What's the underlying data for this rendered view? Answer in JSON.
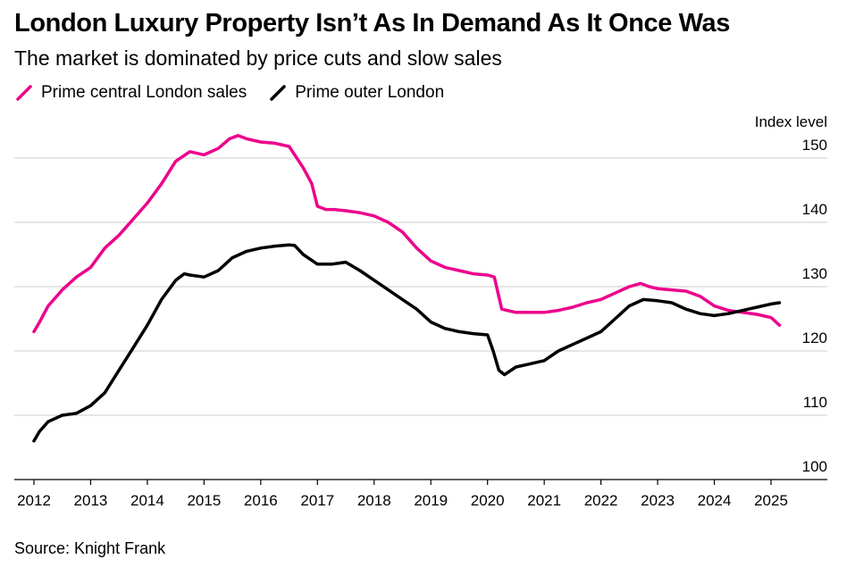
{
  "title": "London Luxury Property Isn’t As In Demand As It Once Was",
  "subtitle": "The market is dominated by price cuts and slow sales",
  "source": "Source: Knight Frank",
  "colors": {
    "pcl": "#ec008c",
    "pol": "#000000",
    "grid": "#cccccc",
    "axis": "#000000"
  },
  "chart_data": {
    "type": "line",
    "title": "London Luxury Property Isn’t As In Demand As It Once Was",
    "subtitle": "The market is dominated by price cuts and slow sales",
    "xlabel": "",
    "ylabel": "Index level",
    "xlim": [
      2012,
      2025.5
    ],
    "ylim": [
      100,
      150
    ],
    "yticks": [
      100,
      110,
      120,
      130,
      140,
      150
    ],
    "xticks": [
      2012,
      2013,
      2014,
      2015,
      2016,
      2017,
      2018,
      2019,
      2020,
      2021,
      2022,
      2023,
      2024,
      2025
    ],
    "grid": true,
    "legend": "top-left",
    "series": [
      {
        "name": "Prime central London sales",
        "color": "#ec008c",
        "x": [
          2012.0,
          2012.1,
          2012.25,
          2012.5,
          2012.75,
          2013.0,
          2013.25,
          2013.5,
          2013.75,
          2014.0,
          2014.25,
          2014.5,
          2014.75,
          2015.0,
          2015.25,
          2015.45,
          2015.6,
          2015.75,
          2016.0,
          2016.25,
          2016.5,
          2016.75,
          2016.9,
          2017.0,
          2017.15,
          2017.3,
          2017.5,
          2017.75,
          2018.0,
          2018.25,
          2018.5,
          2018.75,
          2019.0,
          2019.25,
          2019.5,
          2019.75,
          2020.0,
          2020.12,
          2020.25,
          2020.5,
          2020.75,
          2021.0,
          2021.25,
          2021.5,
          2021.75,
          2022.0,
          2022.25,
          2022.5,
          2022.7,
          2022.85,
          2023.0,
          2023.25,
          2023.5,
          2023.75,
          2024.0,
          2024.25,
          2024.5,
          2024.75,
          2025.0,
          2025.15
        ],
        "values": [
          123.0,
          124.5,
          127.0,
          129.5,
          131.5,
          133.0,
          136.0,
          138.0,
          140.5,
          143.0,
          146.0,
          149.5,
          151.0,
          150.5,
          151.5,
          153.0,
          153.5,
          153.0,
          152.5,
          152.3,
          151.8,
          148.5,
          146.0,
          142.5,
          142.0,
          142.0,
          141.8,
          141.5,
          141.0,
          140.0,
          138.5,
          136.0,
          134.0,
          133.0,
          132.5,
          132.0,
          131.8,
          131.5,
          126.5,
          126.0,
          126.0,
          126.0,
          126.3,
          126.8,
          127.5,
          128.0,
          129.0,
          130.0,
          130.5,
          130.0,
          129.7,
          129.5,
          129.3,
          128.5,
          127.0,
          126.3,
          126.0,
          125.7,
          125.2,
          124.0
        ]
      },
      {
        "name": "Prime outer London",
        "color": "#000000",
        "x": [
          2012.0,
          2012.1,
          2012.25,
          2012.5,
          2012.75,
          2013.0,
          2013.25,
          2013.5,
          2013.75,
          2014.0,
          2014.25,
          2014.5,
          2014.65,
          2014.75,
          2015.0,
          2015.25,
          2015.5,
          2015.75,
          2016.0,
          2016.25,
          2016.5,
          2016.6,
          2016.75,
          2017.0,
          2017.25,
          2017.5,
          2017.75,
          2018.0,
          2018.25,
          2018.5,
          2018.75,
          2019.0,
          2019.25,
          2019.5,
          2019.75,
          2020.0,
          2020.1,
          2020.2,
          2020.3,
          2020.5,
          2020.75,
          2021.0,
          2021.25,
          2021.5,
          2021.75,
          2022.0,
          2022.25,
          2022.5,
          2022.75,
          2023.0,
          2023.25,
          2023.5,
          2023.75,
          2024.0,
          2024.25,
          2024.5,
          2024.75,
          2025.0,
          2025.15
        ],
        "values": [
          106.0,
          107.5,
          109.0,
          110.0,
          110.3,
          111.5,
          113.5,
          117.0,
          120.5,
          124.0,
          128.0,
          131.0,
          132.0,
          131.8,
          131.5,
          132.5,
          134.5,
          135.5,
          136.0,
          136.3,
          136.5,
          136.4,
          135.0,
          133.5,
          133.5,
          133.8,
          132.5,
          131.0,
          129.5,
          128.0,
          126.5,
          124.5,
          123.5,
          123.0,
          122.7,
          122.5,
          120.0,
          117.0,
          116.3,
          117.5,
          118.0,
          118.5,
          120.0,
          121.0,
          122.0,
          123.0,
          125.0,
          127.0,
          128.0,
          127.8,
          127.5,
          126.5,
          125.8,
          125.5,
          125.8,
          126.3,
          126.8,
          127.3,
          127.5
        ]
      }
    ]
  }
}
